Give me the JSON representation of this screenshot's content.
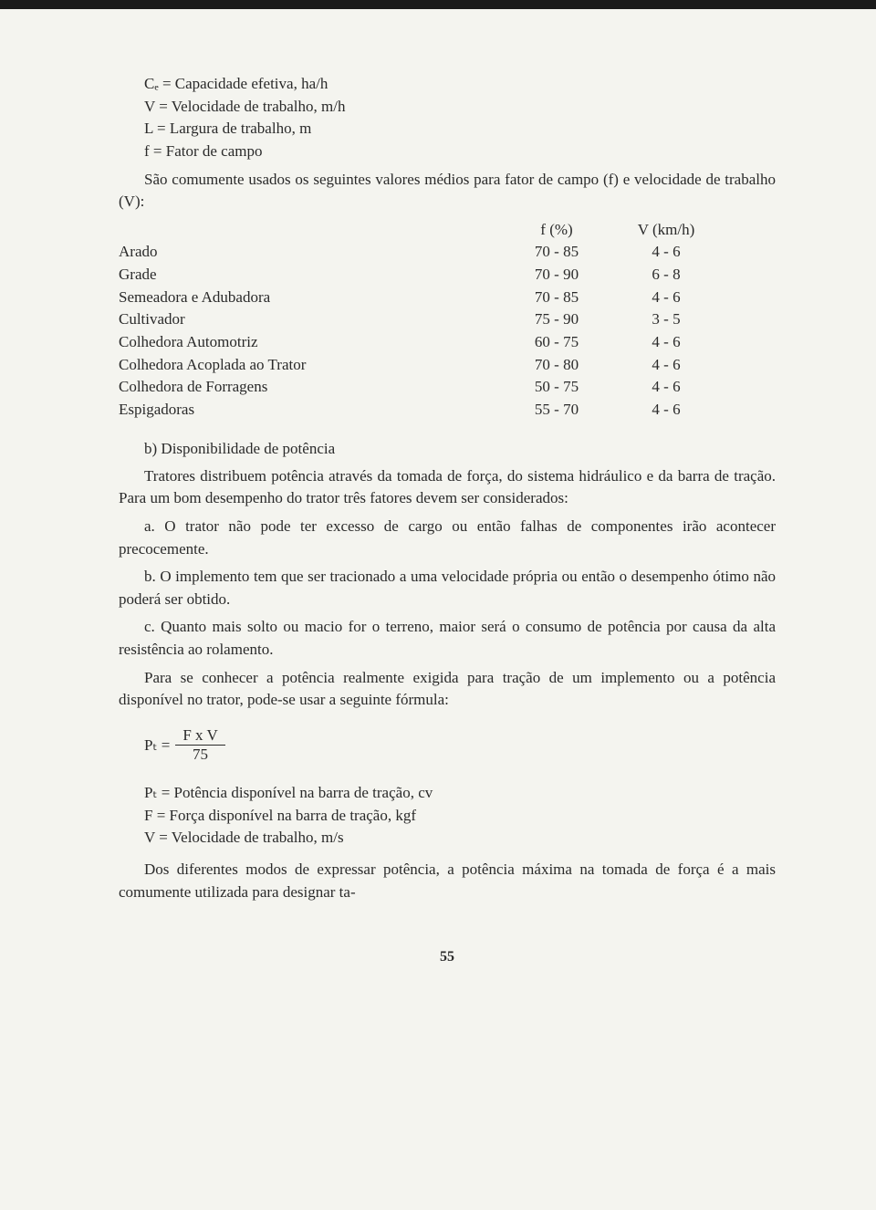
{
  "definitions": [
    "Cₑ = Capacidade efetiva, ha/h",
    "V = Velocidade de trabalho, m/h",
    "L = Largura de trabalho, m",
    "f = Fator de campo"
  ],
  "intro": "São comumente usados os seguintes valores médios para fator de campo (f) e velocidade de trabalho (V):",
  "table": {
    "header": {
      "label": "",
      "f": "f (%)",
      "v": "V (km/h)"
    },
    "rows": [
      {
        "label": "Arado",
        "f": "70 - 85",
        "v": "4 - 6"
      },
      {
        "label": "Grade",
        "f": "70 - 90",
        "v": "6 - 8"
      },
      {
        "label": "Semeadora e Adubadora",
        "f": "70 - 85",
        "v": "4 - 6"
      },
      {
        "label": "Cultivador",
        "f": "75 - 90",
        "v": "3 - 5"
      },
      {
        "label": "Colhedora Automotriz",
        "f": "60 - 75",
        "v": "4 - 6"
      },
      {
        "label": "Colhedora Acoplada ao Trator",
        "f": "70 - 80",
        "v": "4 - 6"
      },
      {
        "label": "Colhedora de Forragens",
        "f": "50 - 75",
        "v": "4 - 6"
      },
      {
        "label": "Espigadoras",
        "f": "55 - 70",
        "v": "4 - 6"
      }
    ]
  },
  "section_b_title": "b) Disponibilidade de potência",
  "para1": "Tratores distribuem potência através da tomada de força, do sistema hidráulico e da barra de tração. Para um bom desempenho do trator três fatores devem ser considerados:",
  "item_a": "a. O trator não pode ter excesso de cargo ou então falhas de componentes irão acontecer precocemente.",
  "item_b": "b. O implemento tem que ser tracionado a uma velocidade própria ou então o desempenho ótimo não poderá ser obtido.",
  "item_c": "c. Quanto mais solto ou macio for o terreno, maior será o consumo de potência por causa da alta resistência ao rolamento.",
  "para2": "Para se conhecer a potência realmente exigida para tração de um implemento ou a potência disponível no trator, pode-se usar a seguinte fórmula:",
  "formula": {
    "lhs": "Pₜ =",
    "num": "F x V",
    "den": "75"
  },
  "legend": [
    "Pₜ = Potência disponível na barra de tração, cv",
    "F = Força disponível na barra de tração, kgf",
    "V = Velocidade de trabalho, m/s"
  ],
  "para3": "Dos diferentes modos de expressar potência, a potência máxima na tomada de força é a mais comumente utilizada para designar ta-",
  "page_number": "55"
}
